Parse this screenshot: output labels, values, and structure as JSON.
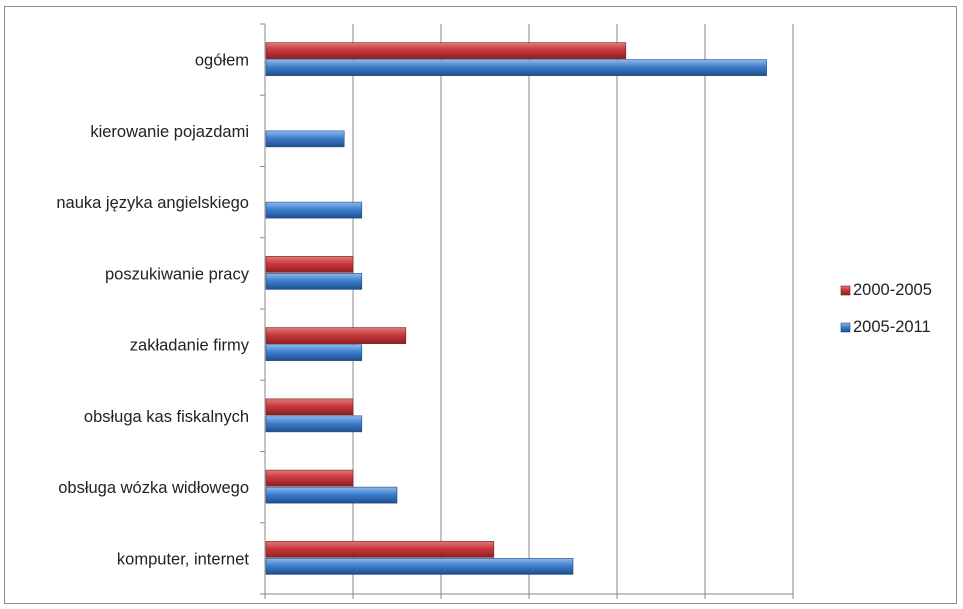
{
  "chart_data": {
    "type": "bar",
    "orientation": "horizontal",
    "categories": [
      "ogółem",
      "kierowanie pojazdami",
      "nauka języka angielskiego",
      "poszukiwanie pracy",
      "zakładanie firmy",
      "obsługa kas fiskalnych",
      "obsługa wózka widłowego",
      "komputer, internet"
    ],
    "series": [
      {
        "name": "2000-2005",
        "color": "#c0393b",
        "values": [
          41,
          null,
          null,
          10,
          16,
          10,
          10,
          26
        ]
      },
      {
        "name": "2005-2011",
        "color": "#3f7fcc",
        "values": [
          57,
          9,
          11,
          11,
          11,
          11,
          15,
          35
        ]
      }
    ],
    "xlim": [
      0,
      60
    ],
    "xticks": [
      "0",
      "10",
      "20",
      "30",
      "40",
      "50",
      "60"
    ],
    "grid": "vertical",
    "legend_position": "right"
  }
}
